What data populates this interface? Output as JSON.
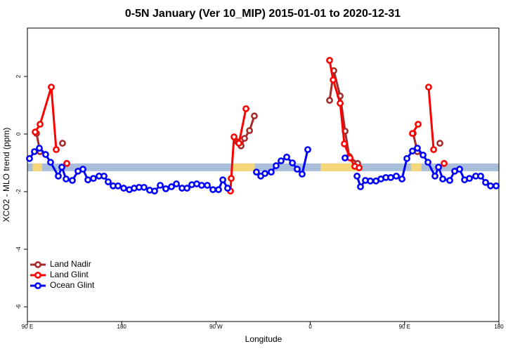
{
  "chart_data": {
    "type": "line",
    "title": "0-5N January (Ver 10_MIP)   2015-01-01 to 2020-12-31",
    "x_label": "Longitude",
    "y_label": "XCO2 - MLO trend (ppm)",
    "xlim": [
      90,
      540
    ],
    "ylim": [
      -6.51,
      3.68
    ],
    "xticks": [
      {
        "value": 90,
        "label": "90 E"
      },
      {
        "value": 180,
        "label": "180"
      },
      {
        "value": 270,
        "label": "90 W"
      },
      {
        "value": 360,
        "label": "0"
      },
      {
        "value": 450,
        "label": "90 E"
      },
      {
        "value": 540,
        "label": "180"
      }
    ],
    "yticks": [
      2,
      0,
      -2,
      -4,
      -6
    ],
    "legend": "bottom-left",
    "band": {
      "ymin": -1.29,
      "ymax": -1.02,
      "color": "#a9bedb",
      "highlight_color": "#f5d77a",
      "highlights": [
        [
          95,
          104
        ],
        [
          286,
          307
        ],
        [
          370,
          407
        ],
        [
          456,
          466
        ]
      ]
    },
    "series": [
      {
        "name": "Land Nadir",
        "color": "#a52a2a",
        "x": [
          98.7,
          102.1,
          null,
          123.5,
          null,
          290.5,
          293.9,
          297.2,
          302.0,
          306.6,
          null,
          378.4,
          382.4,
          388.5,
          393.2,
          397.2,
          405.2,
          null,
          458.2,
          462.2,
          null,
          483.7
        ],
        "values": [
          0.02,
          -0.61,
          null,
          -0.32,
          null,
          -0.27,
          -0.41,
          -0.15,
          0.12,
          0.63,
          null,
          1.17,
          2.2,
          1.32,
          0.1,
          -0.78,
          -1.02,
          null,
          0.02,
          -0.61,
          null,
          -0.32
        ]
      },
      {
        "name": "Land Glint",
        "color": "#ff0000",
        "x": [
          97.4,
          102.1,
          112.8,
          117.5,
          null,
          127.6,
          null,
          283.8,
          284.5,
          287.2,
          291.9,
          298.6,
          null,
          378.4,
          381.8,
          388.5,
          392.5,
          397.9,
          402.5,
          406.6,
          null,
          457.5,
          462.9,
          null,
          472.9,
          477.7,
          null,
          487.7
        ],
        "values": [
          0.07,
          0.34,
          1.63,
          -0.54,
          null,
          -1.02,
          null,
          -1.98,
          -1.54,
          -0.1,
          -0.32,
          0.88,
          null,
          2.56,
          1.88,
          1.07,
          -0.34,
          -0.83,
          -1.12,
          -1.17,
          null,
          0.02,
          0.34,
          null,
          1.63,
          -0.54,
          null,
          -1.02
        ]
      },
      {
        "name": "Ocean Glint",
        "color": "#0000ff",
        "x": [
          92.0,
          96.7,
          101.4,
          107.4,
          112.1,
          119.5,
          122.9,
          126.9,
          132.9,
          138.3,
          143.0,
          147.7,
          153.0,
          158.4,
          163.1,
          167.1,
          171.8,
          176.5,
          181.9,
          187.3,
          191.9,
          196.6,
          201.3,
          206.7,
          211.4,
          216.8,
          222.1,
          227.5,
          232.2,
          237.6,
          242.3,
          246.9,
          251.6,
          256.3,
          261.7,
          267.1,
          272.4,
          276.5,
          281.1,
          null,
          308.6,
          312.7,
          316.7,
          322.7,
          327.4,
          332.1,
          337.5,
          342.9,
          347.5,
          352.2,
          357.6,
          null,
          393.1,
          null,
          404.6,
          407.9,
          412.6,
          417.3,
          422.7,
          427.4,
          432.1,
          436.8,
          442.1,
          447.5,
          452.2,
          457.5,
          462.2,
          467.6,
          472.3,
          479.0,
          482.4,
          486.4,
          493.1,
          497.8,
          502.5,
          507.2,
          511.9,
          517.9,
          522.6,
          527.3,
          532.0,
          537.4
        ],
        "values": [
          -0.85,
          -0.61,
          -0.49,
          -0.71,
          -0.98,
          -1.46,
          -1.15,
          -1.56,
          -1.61,
          -1.29,
          -1.22,
          -1.59,
          -1.54,
          -1.46,
          -1.46,
          -1.66,
          -1.8,
          -1.8,
          -1.88,
          -1.93,
          -1.88,
          -1.85,
          -1.85,
          -1.95,
          -1.98,
          -1.78,
          -1.9,
          -1.83,
          -1.73,
          -1.88,
          -1.88,
          -1.76,
          -1.73,
          -1.78,
          -1.78,
          -1.93,
          -1.93,
          -1.59,
          -1.88,
          null,
          -1.32,
          -1.46,
          -1.37,
          -1.32,
          -1.1,
          -0.93,
          -0.8,
          -1.0,
          -1.22,
          -1.39,
          -0.54,
          null,
          -0.83,
          null,
          -1.46,
          -1.83,
          -1.61,
          -1.63,
          -1.63,
          -1.56,
          -1.51,
          -1.51,
          -1.46,
          -1.56,
          -0.85,
          -0.59,
          -0.49,
          -0.73,
          -0.98,
          -1.46,
          -1.15,
          -1.56,
          -1.61,
          -1.29,
          -1.22,
          -1.59,
          -1.54,
          -1.46,
          -1.46,
          -1.68,
          -1.8,
          -1.8
        ]
      }
    ]
  }
}
